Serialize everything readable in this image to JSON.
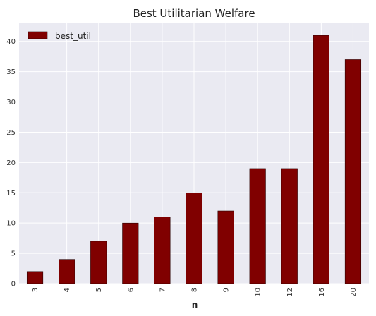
{
  "chart_data": {
    "type": "bar",
    "title": "Best Utilitarian Welfare",
    "xlabel": "n",
    "ylabel": "",
    "categories": [
      "3",
      "4",
      "5",
      "6",
      "7",
      "8",
      "9",
      "10",
      "12",
      "16",
      "20"
    ],
    "series": [
      {
        "name": "best_util",
        "values": [
          2,
          4,
          7,
          10,
          11,
          15,
          12,
          19,
          19,
          41,
          37
        ],
        "color": "#800000"
      }
    ],
    "ylim": [
      0,
      43
    ],
    "yticks": [
      0,
      5,
      10,
      15,
      20,
      25,
      30,
      35,
      40
    ],
    "grid": true,
    "legend_position": "top-left",
    "background_color": "#eaeaf2",
    "grid_color": "#ffffff"
  }
}
